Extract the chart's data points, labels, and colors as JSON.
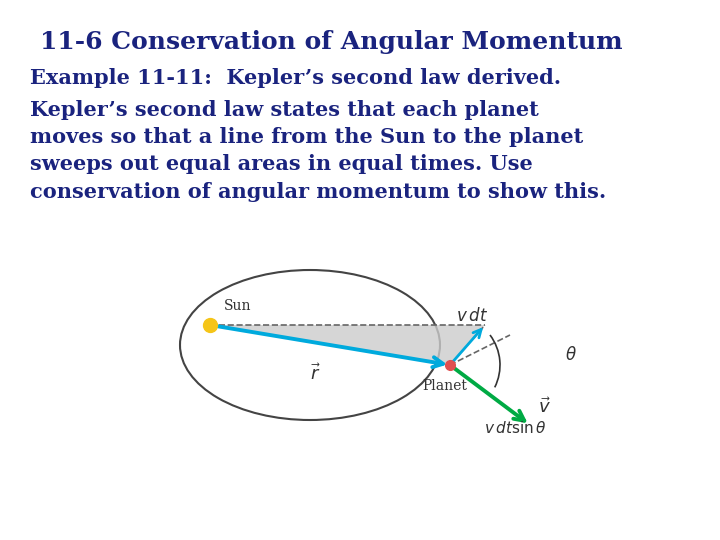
{
  "bg_color": "#ffffff",
  "title": "11-6 Conservation of Angular Momentum",
  "title_color": "#1a237e",
  "title_fontsize": 18,
  "line1": "Example 11-11:  Kepler’s second law derived.",
  "line1_fontsize": 15,
  "line2": "Kepler’s second law states that each planet\nmoves so that a line from the Sun to the planet\nsweeps out equal areas in equal times. Use\nconservation of angular momentum to show this.",
  "line2_fontsize": 15,
  "text_color": "#1a237e",
  "sun_color": "#f5c518",
  "planet_color": "#e05050",
  "r_arrow_color": "#00aadd",
  "v_arrow_color": "#00aa44",
  "diagram_label_color": "#333333"
}
